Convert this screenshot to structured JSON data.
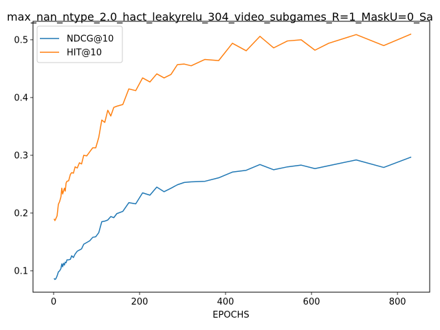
{
  "chart_data": {
    "type": "line",
    "title": "max_nan_ntype_2.0_hact_leakyrelu_304_video_subgames_R=1_MaskU=0_Sa",
    "xlabel": "EPOCHS",
    "ylabel": "",
    "xlim": [
      -48,
      875
    ],
    "ylim": [
      0.063,
      0.532
    ],
    "xticks": [
      0,
      200,
      400,
      600,
      800
    ],
    "yticks": [
      0.1,
      0.2,
      0.3,
      0.4,
      0.5
    ],
    "legend_position": "upper-left",
    "grid": false,
    "series": [
      {
        "name": "NDCG@10",
        "color": "#1f77b4",
        "points": [
          [
            1,
            0.087
          ],
          [
            3,
            0.085
          ],
          [
            5,
            0.086
          ],
          [
            8,
            0.091
          ],
          [
            11,
            0.098
          ],
          [
            14,
            0.1
          ],
          [
            17,
            0.104
          ],
          [
            19,
            0.112
          ],
          [
            21,
            0.107
          ],
          [
            23,
            0.113
          ],
          [
            25,
            0.11
          ],
          [
            27,
            0.115
          ],
          [
            29,
            0.114
          ],
          [
            31,
            0.119
          ],
          [
            35,
            0.119
          ],
          [
            39,
            0.12
          ],
          [
            42,
            0.126
          ],
          [
            46,
            0.123
          ],
          [
            50,
            0.129
          ],
          [
            55,
            0.134
          ],
          [
            60,
            0.136
          ],
          [
            65,
            0.138
          ],
          [
            70,
            0.146
          ],
          [
            77,
            0.149
          ],
          [
            84,
            0.152
          ],
          [
            91,
            0.158
          ],
          [
            98,
            0.159
          ],
          [
            105,
            0.166
          ],
          [
            112,
            0.185
          ],
          [
            119,
            0.186
          ],
          [
            126,
            0.188
          ],
          [
            133,
            0.194
          ],
          [
            140,
            0.192
          ],
          [
            147,
            0.199
          ],
          [
            161,
            0.203
          ],
          [
            175,
            0.218
          ],
          [
            191,
            0.216
          ],
          [
            207,
            0.235
          ],
          [
            224,
            0.231
          ],
          [
            240,
            0.245
          ],
          [
            257,
            0.237
          ],
          [
            273,
            0.243
          ],
          [
            288,
            0.249
          ],
          [
            304,
            0.253
          ],
          [
            320,
            0.254
          ],
          [
            352,
            0.255
          ],
          [
            384,
            0.261
          ],
          [
            416,
            0.271
          ],
          [
            448,
            0.274
          ],
          [
            480,
            0.284
          ],
          [
            512,
            0.275
          ],
          [
            544,
            0.28
          ],
          [
            576,
            0.283
          ],
          [
            608,
            0.277
          ],
          [
            640,
            0.282
          ],
          [
            704,
            0.292
          ],
          [
            768,
            0.279
          ],
          [
            832,
            0.297
          ]
        ]
      },
      {
        "name": "HIT@10",
        "color": "#ff7f0e",
        "points": [
          [
            1,
            0.19
          ],
          [
            3,
            0.187
          ],
          [
            5,
            0.19
          ],
          [
            8,
            0.195
          ],
          [
            11,
            0.215
          ],
          [
            14,
            0.22
          ],
          [
            17,
            0.228
          ],
          [
            19,
            0.243
          ],
          [
            21,
            0.233
          ],
          [
            23,
            0.238
          ],
          [
            25,
            0.243
          ],
          [
            27,
            0.238
          ],
          [
            29,
            0.252
          ],
          [
            31,
            0.255
          ],
          [
            35,
            0.256
          ],
          [
            39,
            0.267
          ],
          [
            42,
            0.27
          ],
          [
            46,
            0.269
          ],
          [
            50,
            0.28
          ],
          [
            55,
            0.278
          ],
          [
            60,
            0.287
          ],
          [
            65,
            0.285
          ],
          [
            70,
            0.3
          ],
          [
            77,
            0.299
          ],
          [
            84,
            0.306
          ],
          [
            91,
            0.313
          ],
          [
            98,
            0.313
          ],
          [
            105,
            0.331
          ],
          [
            112,
            0.361
          ],
          [
            119,
            0.357
          ],
          [
            126,
            0.378
          ],
          [
            133,
            0.368
          ],
          [
            140,
            0.383
          ],
          [
            147,
            0.385
          ],
          [
            161,
            0.388
          ],
          [
            175,
            0.415
          ],
          [
            191,
            0.412
          ],
          [
            207,
            0.434
          ],
          [
            224,
            0.427
          ],
          [
            240,
            0.441
          ],
          [
            257,
            0.434
          ],
          [
            273,
            0.44
          ],
          [
            288,
            0.457
          ],
          [
            304,
            0.458
          ],
          [
            320,
            0.455
          ],
          [
            352,
            0.466
          ],
          [
            384,
            0.464
          ],
          [
            416,
            0.494
          ],
          [
            448,
            0.481
          ],
          [
            480,
            0.506
          ],
          [
            512,
            0.486
          ],
          [
            544,
            0.498
          ],
          [
            576,
            0.5
          ],
          [
            608,
            0.482
          ],
          [
            640,
            0.494
          ],
          [
            704,
            0.509
          ],
          [
            768,
            0.49
          ],
          [
            832,
            0.51
          ]
        ]
      }
    ]
  }
}
